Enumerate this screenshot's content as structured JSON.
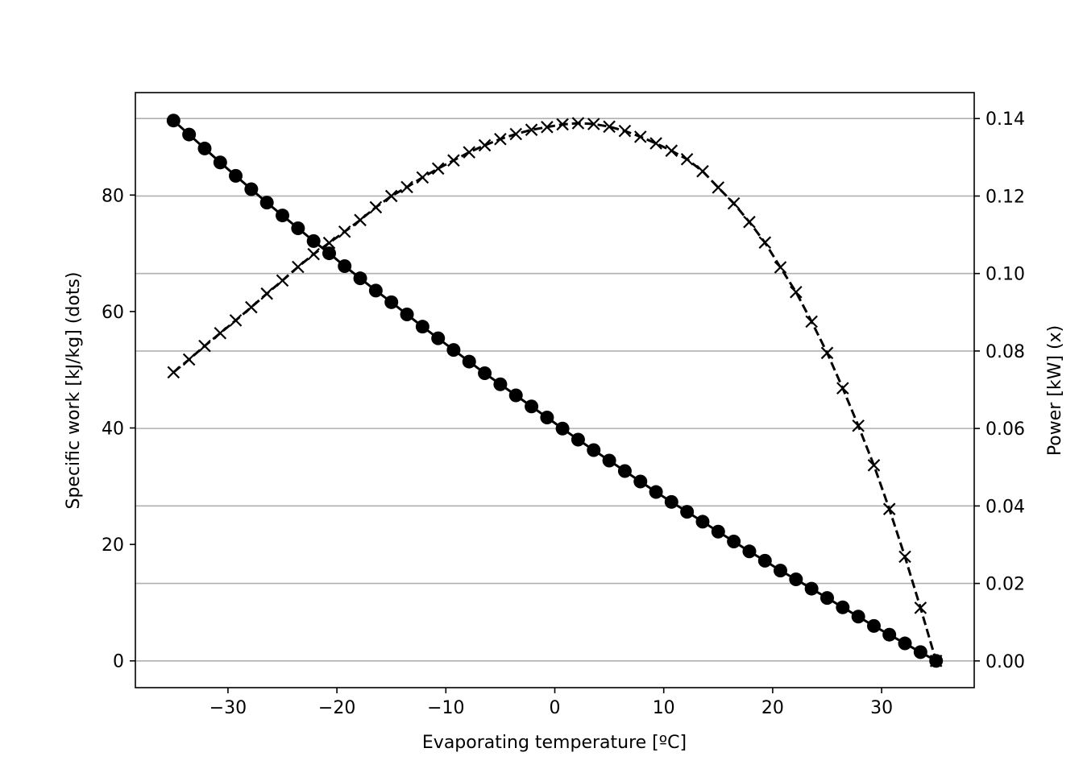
{
  "chart_data": {
    "type": "line",
    "xlabel": "Evaporating temperature [ºC]",
    "ylabel": "Specific work [kJ/kg] (dots)",
    "ylabel_right": "Power [kW] (x)",
    "xlim": [
      -38.5,
      38.5
    ],
    "ylim": [
      -4.6,
      97.6
    ],
    "ylim_right": [
      -0.0069,
      0.1467
    ],
    "xticks": [
      -30,
      -20,
      -10,
      0,
      10,
      20,
      30
    ],
    "yticks": [
      0,
      20,
      40,
      60,
      80
    ],
    "yticks_right": [
      0.0,
      0.02,
      0.04,
      0.06,
      0.08,
      0.1,
      0.12,
      0.14
    ],
    "grid": "horizontal lines at right-axis ticks",
    "colors": {
      "line": "#000000",
      "grid": "#b0b0b0"
    },
    "series": [
      {
        "axis": "left",
        "marker": "dot",
        "linestyle": "solid",
        "x": [
          -35.0,
          -33.57,
          -32.14,
          -30.71,
          -29.29,
          -27.86,
          -26.43,
          -25.0,
          -23.57,
          -22.14,
          -20.71,
          -19.29,
          -17.86,
          -16.43,
          -15.0,
          -13.57,
          -12.14,
          -10.71,
          -9.29,
          -7.86,
          -6.43,
          -5.0,
          -3.57,
          -2.14,
          -0.71,
          0.71,
          2.14,
          3.57,
          5.0,
          6.43,
          7.86,
          9.29,
          10.71,
          12.14,
          13.57,
          15.0,
          16.43,
          17.86,
          19.29,
          20.71,
          22.14,
          23.57,
          25.0,
          26.43,
          27.86,
          29.29,
          30.71,
          32.14,
          33.57,
          35.0
        ],
        "y": [
          92.8,
          90.4,
          88.0,
          85.6,
          83.3,
          81.0,
          78.7,
          76.5,
          74.3,
          72.1,
          70.0,
          67.8,
          65.7,
          63.6,
          61.6,
          59.5,
          57.4,
          55.4,
          53.4,
          51.4,
          49.4,
          47.5,
          45.6,
          43.7,
          41.8,
          39.9,
          38.0,
          36.2,
          34.4,
          32.6,
          30.8,
          29.0,
          27.3,
          25.6,
          23.9,
          22.2,
          20.5,
          18.8,
          17.2,
          15.5,
          14.0,
          12.4,
          10.8,
          9.2,
          7.6,
          6.0,
          4.5,
          3.0,
          1.5,
          0.0
        ]
      },
      {
        "axis": "right",
        "marker": "x",
        "linestyle": "dashed",
        "x": [
          -35.0,
          -33.57,
          -32.14,
          -30.71,
          -29.29,
          -27.86,
          -26.43,
          -25.0,
          -23.57,
          -22.14,
          -20.71,
          -19.29,
          -17.86,
          -16.43,
          -15.0,
          -13.57,
          -12.14,
          -10.71,
          -9.29,
          -7.86,
          -6.43,
          -5.0,
          -3.57,
          -2.14,
          -0.71,
          0.71,
          2.14,
          3.57,
          5.0,
          6.43,
          7.86,
          9.29,
          10.71,
          12.14,
          13.57,
          15.0,
          16.43,
          17.86,
          19.29,
          20.71,
          22.14,
          23.57,
          25.0,
          26.43,
          27.86,
          29.29,
          30.71,
          32.14,
          33.57,
          35.0
        ],
        "y": [
          0.0745,
          0.0778,
          0.0813,
          0.0846,
          0.0879,
          0.0913,
          0.0948,
          0.0982,
          0.1017,
          0.105,
          0.1079,
          0.1108,
          0.1138,
          0.1171,
          0.12,
          0.1223,
          0.1248,
          0.1271,
          0.1292,
          0.1313,
          0.1331,
          0.1347,
          0.136,
          0.1371,
          0.1378,
          0.1385,
          0.1388,
          0.1386,
          0.1379,
          0.1368,
          0.1353,
          0.1336,
          0.1317,
          0.1295,
          0.1264,
          0.1222,
          0.1181,
          0.1133,
          0.108,
          0.1016,
          0.0952,
          0.0876,
          0.0795,
          0.0704,
          0.0607,
          0.0505,
          0.0392,
          0.0269,
          0.0137,
          0.0
        ]
      }
    ]
  }
}
